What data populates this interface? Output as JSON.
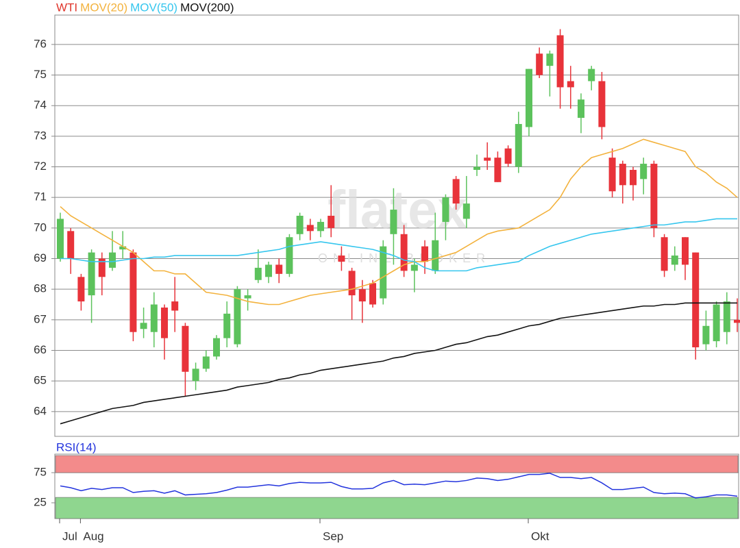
{
  "chart_data": [
    {
      "type": "candlestick",
      "name": "WTI",
      "color": "#e0352b",
      "up_color": "#5cc25c",
      "down_color": "#e8333a",
      "watermark": "flatex",
      "watermark_sub": "ONLINE BROKER",
      "categories": [
        "Jul",
        null,
        "Aug",
        null,
        null,
        null,
        null,
        null,
        null,
        null,
        null,
        null,
        null,
        null,
        null,
        null,
        null,
        null,
        null,
        null,
        null,
        null,
        null,
        null,
        null,
        "Sep",
        null,
        null,
        null,
        null,
        null,
        null,
        null,
        null,
        null,
        null,
        null,
        null,
        null,
        null,
        null,
        null,
        null,
        null,
        null,
        "Okt",
        null,
        null,
        null,
        null,
        null,
        null,
        null,
        null,
        null,
        null,
        null,
        null,
        null,
        null,
        null,
        null,
        null,
        null,
        null,
        null
      ],
      "open": [
        69.0,
        69.9,
        68.4,
        67.8,
        69.0,
        68.7,
        69.3,
        69.2,
        66.7,
        66.6,
        67.4,
        67.6,
        66.8,
        65.0,
        65.4,
        65.8,
        66.4,
        66.2,
        67.7,
        68.3,
        68.4,
        68.8,
        68.5,
        69.8,
        70.1,
        69.9,
        70.4,
        69.1,
        68.6,
        68.0,
        68.2,
        67.7,
        69.8,
        69.8,
        68.6,
        69.4,
        68.6,
        70.2,
        71.6,
        70.3,
        71.9,
        72.3,
        72.3,
        72.6,
        72.0,
        73.3,
        75.7,
        75.3,
        76.3,
        74.8,
        73.6,
        74.8,
        74.8,
        72.3,
        72.1,
        71.9,
        71.6,
        72.1,
        69.7,
        68.8,
        69.7,
        69.2,
        66.2,
        66.3,
        66.6,
        67.0
      ],
      "high": [
        70.5,
        70.0,
        68.5,
        69.3,
        69.2,
        69.9,
        69.9,
        69.3,
        67.4,
        67.9,
        67.5,
        68.4,
        66.9,
        65.6,
        66.0,
        66.5,
        67.6,
        68.1,
        68.0,
        69.3,
        68.9,
        69.0,
        69.8,
        70.5,
        70.3,
        70.3,
        71.4,
        69.4,
        68.7,
        68.3,
        68.3,
        69.6,
        71.3,
        70.1,
        69.0,
        69.6,
        70.5,
        71.1,
        71.7,
        71.7,
        72.4,
        72.8,
        72.5,
        72.7,
        73.8,
        75.2,
        75.9,
        75.8,
        76.5,
        75.3,
        74.4,
        75.3,
        75.1,
        72.6,
        72.2,
        72.0,
        72.3,
        72.2,
        69.8,
        69.4,
        69.7,
        69.2,
        67.3,
        67.6,
        67.9,
        67.7
      ],
      "low": [
        68.9,
        68.5,
        67.3,
        66.9,
        67.8,
        68.6,
        69.0,
        66.3,
        66.4,
        66.1,
        65.7,
        66.6,
        64.5,
        64.7,
        65.3,
        65.7,
        66.1,
        66.1,
        67.3,
        68.2,
        68.2,
        68.2,
        68.4,
        69.6,
        69.6,
        69.7,
        69.7,
        68.6,
        67.0,
        66.9,
        67.4,
        67.5,
        68.8,
        68.4,
        67.9,
        68.5,
        68.5,
        69.6,
        70.6,
        70.0,
        71.7,
        71.9,
        71.5,
        72.0,
        71.8,
        73.0,
        74.9,
        74.3,
        73.9,
        73.9,
        73.1,
        74.5,
        72.9,
        71.0,
        70.8,
        70.9,
        71.1,
        69.7,
        68.4,
        68.6,
        68.3,
        65.7,
        66.0,
        66.1,
        66.2,
        66.6
      ],
      "close": [
        70.3,
        69.0,
        67.6,
        69.2,
        68.4,
        69.2,
        69.4,
        66.6,
        66.9,
        67.5,
        66.4,
        67.3,
        65.3,
        65.4,
        65.8,
        66.4,
        67.2,
        68.0,
        67.8,
        68.7,
        68.8,
        68.5,
        69.7,
        70.4,
        69.9,
        70.2,
        70.0,
        68.9,
        67.8,
        67.6,
        67.5,
        69.4,
        70.6,
        68.6,
        68.8,
        68.9,
        69.6,
        71.0,
        70.8,
        70.8,
        72.0,
        72.2,
        71.5,
        72.1,
        73.4,
        75.2,
        75.0,
        75.7,
        74.6,
        74.6,
        74.2,
        75.2,
        73.3,
        71.2,
        71.4,
        71.4,
        72.1,
        70.0,
        68.6,
        69.1,
        68.8,
        66.1,
        66.8,
        67.5,
        67.6,
        66.9
      ],
      "series": [
        {
          "name": "MOV(20)",
          "color": "#f3b23d",
          "values": [
            70.7,
            70.4,
            70.2,
            70.0,
            69.8,
            69.6,
            69.4,
            69.2,
            68.9,
            68.6,
            68.6,
            68.5,
            68.5,
            68.2,
            67.9,
            67.85,
            67.8,
            67.7,
            67.6,
            67.55,
            67.5,
            67.5,
            67.6,
            67.7,
            67.8,
            67.85,
            67.9,
            67.95,
            68.0,
            68.1,
            68.2,
            68.4,
            68.6,
            68.8,
            68.9,
            68.9,
            69.0,
            69.1,
            69.2,
            69.4,
            69.6,
            69.8,
            69.9,
            69.95,
            70.0,
            70.2,
            70.4,
            70.6,
            71.0,
            71.6,
            72.0,
            72.3,
            72.4,
            72.5,
            72.6,
            72.75,
            72.9,
            72.8,
            72.7,
            72.6,
            72.5,
            72.0,
            71.8,
            71.5,
            71.3,
            71.0
          ]
        },
        {
          "name": "MOV(50)",
          "color": "#35c6ee",
          "values": [
            69.0,
            69.0,
            68.95,
            68.9,
            68.9,
            68.9,
            68.95,
            69.0,
            69.0,
            69.05,
            69.05,
            69.1,
            69.1,
            69.1,
            69.1,
            69.1,
            69.1,
            69.1,
            69.15,
            69.2,
            69.25,
            69.3,
            69.4,
            69.45,
            69.5,
            69.55,
            69.5,
            69.45,
            69.4,
            69.35,
            69.3,
            69.2,
            69.1,
            68.95,
            68.9,
            68.7,
            68.6,
            68.6,
            68.6,
            68.6,
            68.7,
            68.75,
            68.8,
            68.85,
            68.9,
            69.1,
            69.25,
            69.4,
            69.5,
            69.6,
            69.7,
            69.8,
            69.85,
            69.9,
            69.95,
            70.0,
            70.05,
            70.1,
            70.1,
            70.15,
            70.2,
            70.2,
            70.25,
            70.3,
            70.3,
            70.3
          ]
        },
        {
          "name": "MOV(200)",
          "color": "#111111",
          "values": [
            63.6,
            63.7,
            63.8,
            63.9,
            64.0,
            64.1,
            64.15,
            64.2,
            64.3,
            64.35,
            64.4,
            64.45,
            64.5,
            64.55,
            64.6,
            64.65,
            64.7,
            64.8,
            64.85,
            64.9,
            64.95,
            65.05,
            65.1,
            65.2,
            65.25,
            65.35,
            65.4,
            65.45,
            65.5,
            65.55,
            65.6,
            65.65,
            65.75,
            65.8,
            65.9,
            65.95,
            66.0,
            66.1,
            66.2,
            66.25,
            66.35,
            66.45,
            66.5,
            66.6,
            66.7,
            66.8,
            66.85,
            66.95,
            67.05,
            67.1,
            67.15,
            67.2,
            67.25,
            67.3,
            67.35,
            67.4,
            67.45,
            67.45,
            67.5,
            67.5,
            67.55,
            67.55,
            67.55,
            67.55,
            67.55,
            67.55
          ]
        }
      ],
      "ylim": [
        63.19,
        76.96
      ],
      "yticks": [
        64,
        65,
        66,
        67,
        68,
        69,
        70,
        71,
        72,
        73,
        74,
        75,
        76
      ],
      "grid": true
    },
    {
      "type": "line",
      "title": "RSI(14)",
      "color": "#2233dd",
      "values": [
        53,
        50,
        45,
        49,
        47,
        50,
        50,
        42,
        44,
        45,
        41,
        45,
        38,
        39,
        40,
        42,
        46,
        51,
        51,
        53,
        55,
        53,
        57,
        59,
        58,
        58,
        59,
        52,
        48,
        48,
        49,
        58,
        62,
        55,
        56,
        55,
        58,
        61,
        60,
        62,
        66,
        65,
        62,
        64,
        68,
        72,
        72,
        74,
        67,
        67,
        65,
        67,
        58,
        47,
        47,
        49,
        51,
        42,
        40,
        41,
        40,
        33,
        35,
        38,
        38,
        36
      ],
      "ylim": [
        0,
        100
      ],
      "yticks": [
        25,
        75
      ],
      "grid": true,
      "bands": [
        {
          "from": 75,
          "to": 100,
          "color": "#f38b8b"
        },
        {
          "from": 0,
          "to": 34,
          "color": "#8fd68f"
        }
      ]
    }
  ]
}
